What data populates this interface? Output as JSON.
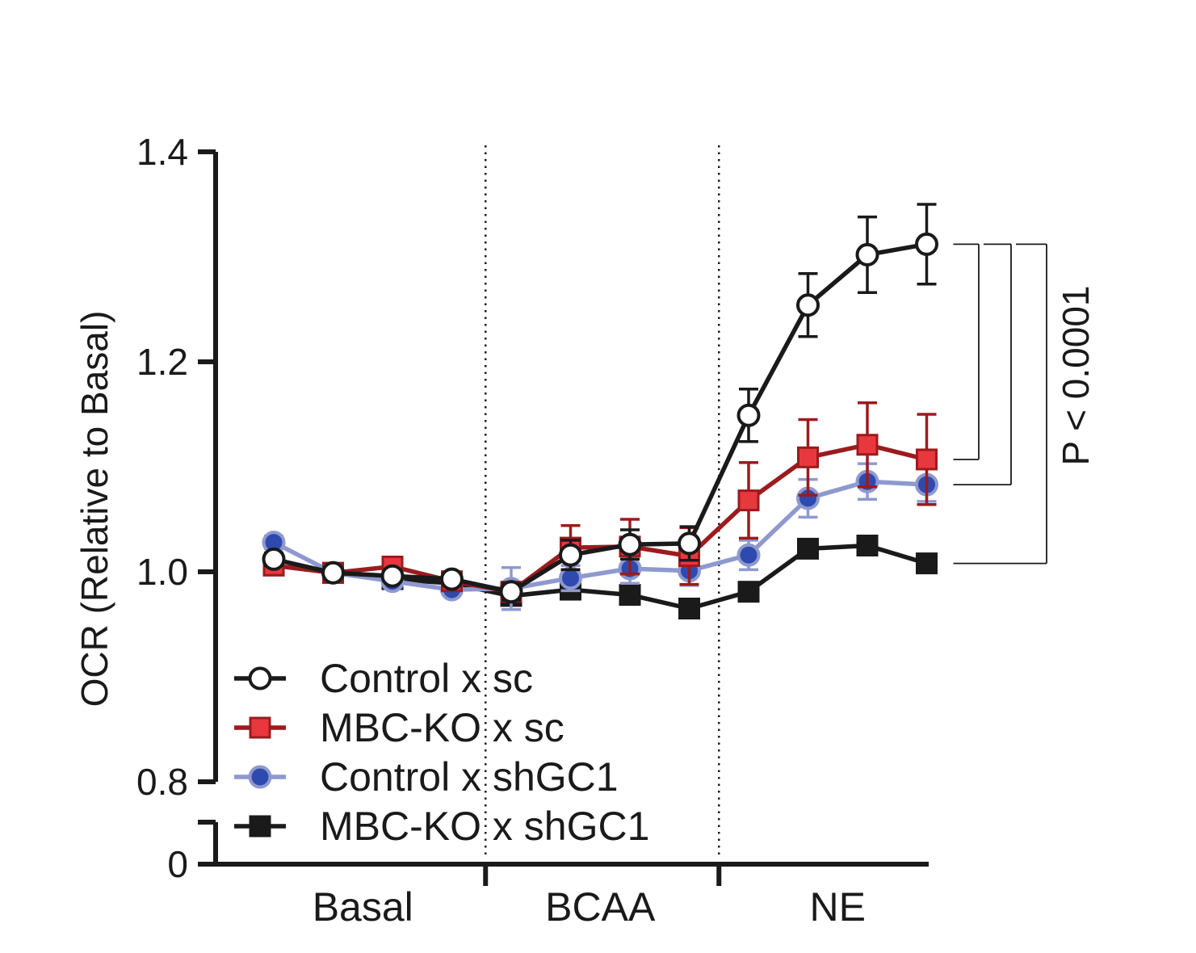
{
  "chart_data": {
    "type": "line",
    "ylabel": "OCR (Relative to Basal)",
    "ylim": [
      0.8,
      1.4
    ],
    "yticks": [
      "0.8",
      "1.0",
      "1.2",
      "1.4"
    ],
    "y_break_tick": "0",
    "x": [
      1,
      2,
      3,
      4,
      5,
      6,
      7,
      8,
      9,
      10,
      11,
      12
    ],
    "categories": [
      {
        "label": "Basal",
        "start": 1,
        "end": 4
      },
      {
        "label": "BCAA",
        "start": 5,
        "end": 8
      },
      {
        "label": "NE",
        "start": 9,
        "end": 12
      }
    ],
    "phase_boundaries": [
      4.5,
      8.5
    ],
    "series": [
      {
        "name": "Control x sc",
        "color": "#1a1a1a",
        "fill": "#ffffff",
        "marker": "circle",
        "values": [
          1.012,
          0.999,
          0.996,
          0.993,
          0.981,
          1.016,
          1.026,
          1.027,
          1.149,
          1.254,
          1.302,
          1.312
        ],
        "errors": [
          0.006,
          0.004,
          0.004,
          0.004,
          0.008,
          0.014,
          0.014,
          0.016,
          0.025,
          0.03,
          0.036,
          0.038
        ]
      },
      {
        "name": "MBC-KO x sc",
        "color": "#9b1b1e",
        "fill": "#e8383d",
        "marker": "square",
        "values": [
          1.006,
          0.999,
          1.005,
          0.991,
          0.981,
          1.023,
          1.024,
          1.015,
          1.068,
          1.109,
          1.121,
          1.107
        ],
        "errors": [
          0.005,
          0.004,
          0.005,
          0.005,
          0.008,
          0.021,
          0.026,
          0.027,
          0.036,
          0.036,
          0.04,
          0.043
        ]
      },
      {
        "name": "Control x shGC1",
        "color": "#8e99cf",
        "fill": "#2e4aae",
        "marker": "circle",
        "values": [
          1.028,
          0.999,
          0.991,
          0.983,
          0.984,
          0.994,
          1.003,
          1.001,
          1.016,
          1.07,
          1.086,
          1.083
        ],
        "errors": [
          0.006,
          0.004,
          0.005,
          0.005,
          0.02,
          0.012,
          0.014,
          0.014,
          0.014,
          0.018,
          0.017,
          0.016
        ]
      },
      {
        "name": "MBC-KO x shGC1",
        "color": "#1a1a1a",
        "fill": "#1a1a1a",
        "marker": "square",
        "values": [
          1.006,
          0.999,
          0.993,
          0.989,
          0.977,
          0.983,
          0.978,
          0.965,
          0.981,
          1.022,
          1.025,
          1.008
        ],
        "errors": [
          0.004,
          0.003,
          0.004,
          0.004,
          0.006,
          0.006,
          0.006,
          0.006,
          0.006,
          0.006,
          0.006,
          0.006
        ]
      }
    ],
    "annotation": {
      "text": "P < 0.0001",
      "comparisons": [
        "MBC-KO x sc",
        "Control x shGC1",
        "MBC-KO x shGC1"
      ],
      "reference": "Control x sc"
    },
    "legend_position": "bottom-left"
  }
}
